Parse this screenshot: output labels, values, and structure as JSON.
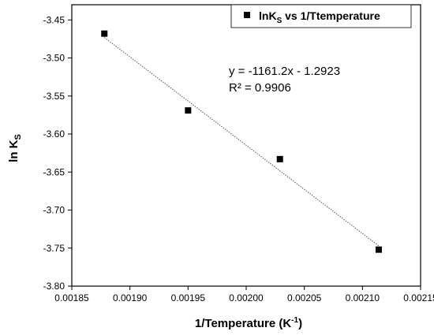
{
  "chart_data": {
    "type": "scatter",
    "xlabel": {
      "text": "1/Temperature (K",
      "sup": "-1",
      "suffix": ")"
    },
    "ylabel": {
      "text": "ln K",
      "sub": "S"
    },
    "xlim": [
      0.00185,
      0.00215
    ],
    "ylim": [
      -3.8,
      -3.43
    ],
    "x_ticks": [
      "0.00185",
      "0.00190",
      "0.00195",
      "0.00200",
      "0.00205",
      "0.00210",
      "0.00215"
    ],
    "y_ticks": [
      "-3.45",
      "-3.50",
      "-3.55",
      "-3.60",
      "-3.65",
      "-3.70",
      "-3.75",
      "-3.80"
    ],
    "grid": false,
    "legend": {
      "position": "top-right",
      "prefix": "lnK",
      "sub": "S",
      "suffix": " vs 1/Ttemperature"
    },
    "series": [
      {
        "name": "lnKS vs 1/Ttemperature",
        "marker": "square",
        "color": "#000000",
        "x": [
          0.001878,
          0.00195,
          0.002029,
          0.002114
        ],
        "y": [
          -3.468,
          -3.569,
          -3.633,
          -3.752
        ]
      }
    ],
    "fit": {
      "x_range": [
        0.001878,
        0.002114
      ],
      "slope": -1161.2,
      "intercept": -1.2923,
      "equation": "y = -1161.2x - 1.2923",
      "r2": "R² = 0.9906"
    }
  }
}
